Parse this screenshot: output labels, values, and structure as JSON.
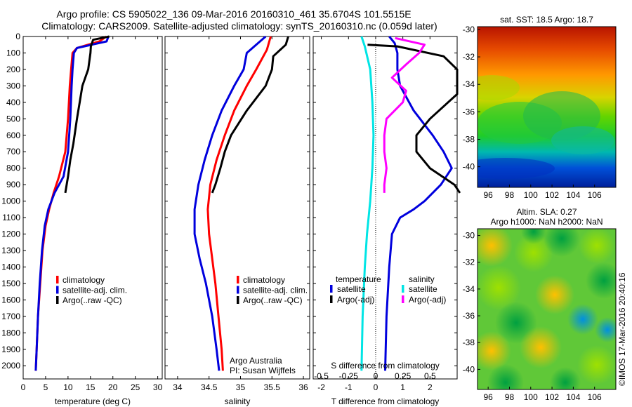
{
  "header": {
    "line1": "Argo profile: CS 5905022_136 09-Mar-2016 20160310_461 35.6704S 101.5515E",
    "line2": "Climatology: CARS2009. Satellite-adjusted climatology: synTS_20160310.nc (0.059d later)"
  },
  "footer": {
    "agency": "Argo Australia",
    "pi": "PI: Susan Wijffels",
    "stamp": "©IMOS 17-Mar-2016 20:40:16"
  },
  "colors": {
    "climatology": "#ff0000",
    "satellite_adj": "#0000dd",
    "argo": "#000000",
    "cyan": "#00e5e5",
    "magenta": "#ff00ff"
  },
  "chart_data": [
    {
      "id": "temperature",
      "type": "line",
      "xlabel": "temperature (deg C)",
      "xlim": [
        0,
        31
      ],
      "xticks": [
        0,
        5,
        10,
        15,
        20,
        25,
        30
      ],
      "ylim": [
        0,
        2080
      ],
      "yticks": [
        0,
        100,
        200,
        300,
        400,
        500,
        600,
        700,
        800,
        900,
        1000,
        1100,
        1200,
        1300,
        1400,
        1500,
        1600,
        1700,
        1800,
        1900,
        2000
      ],
      "legend": [
        "climatology",
        "satellite-adj. clim.",
        "Argo(..raw -QC)"
      ],
      "series": [
        {
          "name": "climatology",
          "color": "#ff0000",
          "points": [
            [
              18.5,
              0
            ],
            [
              17,
              30
            ],
            [
              12,
              70
            ],
            [
              11,
              100
            ],
            [
              10.7,
              200
            ],
            [
              10.4,
              300
            ],
            [
              10,
              500
            ],
            [
              9.4,
              700
            ],
            [
              8,
              850
            ],
            [
              6.8,
              950
            ],
            [
              5.8,
              1050
            ],
            [
              5,
              1150
            ],
            [
              4.3,
              1300
            ],
            [
              3.8,
              1500
            ],
            [
              3.3,
              1700
            ],
            [
              3.0,
              1900
            ],
            [
              2.8,
              2030
            ]
          ]
        },
        {
          "name": "satellite-adj. clim.",
          "color": "#0000dd",
          "points": [
            [
              19,
              0
            ],
            [
              18.6,
              30
            ],
            [
              12,
              70
            ],
            [
              11.3,
              100
            ],
            [
              11,
              200
            ],
            [
              10.8,
              300
            ],
            [
              10.5,
              500
            ],
            [
              10,
              700
            ],
            [
              9,
              850
            ],
            [
              7,
              950
            ],
            [
              5.6,
              1050
            ],
            [
              4.8,
              1150
            ],
            [
              4.2,
              1300
            ],
            [
              3.7,
              1500
            ],
            [
              3.3,
              1700
            ],
            [
              3.0,
              1900
            ],
            [
              2.8,
              2030
            ]
          ]
        },
        {
          "name": "Argo(..raw -QC)",
          "color": "#000000",
          "points": [
            [
              19.2,
              0
            ],
            [
              15.6,
              20
            ],
            [
              15.1,
              60
            ],
            [
              15,
              100
            ],
            [
              14.5,
              200
            ],
            [
              13.2,
              300
            ],
            [
              12.6,
              400
            ],
            [
              12,
              500
            ],
            [
              11.2,
              650
            ],
            [
              10.5,
              750
            ],
            [
              10,
              850
            ],
            [
              9.4,
              950
            ]
          ]
        }
      ]
    },
    {
      "id": "salinity",
      "type": "line",
      "xlabel": "salinity",
      "xlim": [
        33.8,
        36.1
      ],
      "xticks": [
        34,
        34.5,
        35,
        35.5,
        36
      ],
      "ylim": [
        0,
        2080
      ],
      "legend": [
        "climatology",
        "satellite-adj. clim.",
        "Argo(..raw -QC)"
      ],
      "series": [
        {
          "name": "climatology",
          "color": "#ff0000",
          "points": [
            [
              35.48,
              0
            ],
            [
              35.42,
              80
            ],
            [
              35.25,
              200
            ],
            [
              35.1,
              300
            ],
            [
              34.9,
              450
            ],
            [
              34.75,
              600
            ],
            [
              34.62,
              750
            ],
            [
              34.52,
              900
            ],
            [
              34.48,
              1050
            ],
            [
              34.5,
              1200
            ],
            [
              34.55,
              1350
            ],
            [
              34.6,
              1500
            ],
            [
              34.65,
              1700
            ],
            [
              34.7,
              1900
            ],
            [
              34.72,
              2030
            ]
          ]
        },
        {
          "name": "satellite-adj. clim.",
          "color": "#0000dd",
          "points": [
            [
              35.4,
              0
            ],
            [
              35.1,
              100
            ],
            [
              35.05,
              200
            ],
            [
              34.9,
              300
            ],
            [
              34.7,
              450
            ],
            [
              34.55,
              600
            ],
            [
              34.43,
              750
            ],
            [
              34.33,
              900
            ],
            [
              34.27,
              1050
            ],
            [
              34.27,
              1200
            ],
            [
              34.35,
              1350
            ],
            [
              34.45,
              1500
            ],
            [
              34.55,
              1700
            ],
            [
              34.62,
              1900
            ],
            [
              34.66,
              2030
            ]
          ]
        },
        {
          "name": "Argo(..raw -QC)",
          "color": "#000000",
          "points": [
            [
              35.76,
              0
            ],
            [
              35.72,
              50
            ],
            [
              35.52,
              120
            ],
            [
              35.5,
              200
            ],
            [
              35.4,
              300
            ],
            [
              35.1,
              450
            ],
            [
              34.85,
              600
            ],
            [
              34.75,
              700
            ],
            [
              34.68,
              800
            ],
            [
              34.6,
              900
            ],
            [
              34.55,
              950
            ]
          ]
        }
      ]
    },
    {
      "id": "difference",
      "type": "line",
      "xlabel": "T difference from climatology",
      "xlim": [
        -2.3,
        3.0
      ],
      "xticks": [
        -2,
        -1,
        0,
        1,
        2
      ],
      "xlabel_top": "S difference from climatology",
      "xticks_top": [
        -0.5,
        -0.25,
        0,
        0.25,
        0.5
      ],
      "ylim": [
        0,
        2080
      ],
      "legend_headers": [
        "temperature",
        "salinity"
      ],
      "legend": [
        "satellite",
        "Argo(-adj)",
        "satellite",
        "Argo(-adj)"
      ],
      "series": [
        {
          "name": "satellite",
          "color": "#0000dd",
          "points": [
            [
              0.5,
              0
            ],
            [
              0.7,
              40
            ],
            [
              0.8,
              100
            ],
            [
              0.8,
              200
            ],
            [
              0.9,
              300
            ],
            [
              1.4,
              450
            ],
            [
              2.1,
              600
            ],
            [
              2.5,
              700
            ],
            [
              2.8,
              800
            ],
            [
              2.4,
              900
            ],
            [
              1.8,
              1000
            ],
            [
              1.4,
              1050
            ],
            [
              0.9,
              1100
            ],
            [
              0.6,
              1200
            ],
            [
              0.5,
              1400
            ],
            [
              0.4,
              1700
            ],
            [
              0.35,
              2030
            ]
          ]
        },
        {
          "name": "Argo(-adj)",
          "color": "#000000",
          "points": [
            [
              -0.3,
              50
            ],
            [
              0.8,
              60
            ],
            [
              2.5,
              120
            ],
            [
              3.0,
              200
            ],
            [
              3.0,
              350
            ],
            [
              2.0,
              500
            ],
            [
              1.5,
              600
            ],
            [
              1.5,
              700
            ],
            [
              2.0,
              800
            ],
            [
              2.9,
              900
            ],
            [
              3.1,
              950
            ]
          ]
        },
        {
          "name": "satellite",
          "color": "#00e5e5",
          "points": [
            [
              -0.13,
              0
            ],
            [
              -0.1,
              60
            ],
            [
              -0.05,
              200
            ],
            [
              -0.03,
              400
            ],
            [
              -0.02,
              600
            ],
            [
              -0.03,
              800
            ],
            [
              -0.05,
              1000
            ],
            [
              -0.08,
              1200
            ],
            [
              -0.1,
              1400
            ],
            [
              -0.12,
              1700
            ],
            [
              -0.13,
              2030
            ]
          ]
        },
        {
          "name": "Argo(-adj)",
          "color": "#ff00ff",
          "points": [
            [
              0.18,
              10
            ],
            [
              0.45,
              50
            ],
            [
              0.4,
              100
            ],
            [
              0.28,
              170
            ],
            [
              0.15,
              250
            ],
            [
              0.28,
              330
            ],
            [
              0.25,
              400
            ],
            [
              0.1,
              500
            ],
            [
              0.08,
              600
            ],
            [
              0.08,
              700
            ],
            [
              0.1,
              800
            ],
            [
              0.08,
              900
            ],
            [
              0.08,
              950
            ]
          ]
        }
      ]
    },
    {
      "id": "sst-map",
      "type": "heatmap",
      "title": "sat. SST: 18.5 Argo: 18.7",
      "xlim": [
        95,
        108
      ],
      "xticks": [
        96,
        98,
        100,
        102,
        104,
        106
      ],
      "ylim": [
        -41.5,
        -29.8
      ],
      "yticks": [
        -30,
        -32,
        -34,
        -36,
        -38,
        -40
      ]
    },
    {
      "id": "sla-map",
      "type": "heatmap",
      "title": "Altim. SLA: 0.27",
      "subtitle": "Argo h1000: NaN h2000: NaN",
      "xlim": [
        95,
        108
      ],
      "xticks": [
        96,
        98,
        100,
        102,
        104,
        106
      ],
      "ylim": [
        -41.5,
        -29.5
      ],
      "yticks": [
        -30,
        -32,
        -34,
        -36,
        -38,
        -40
      ]
    }
  ]
}
